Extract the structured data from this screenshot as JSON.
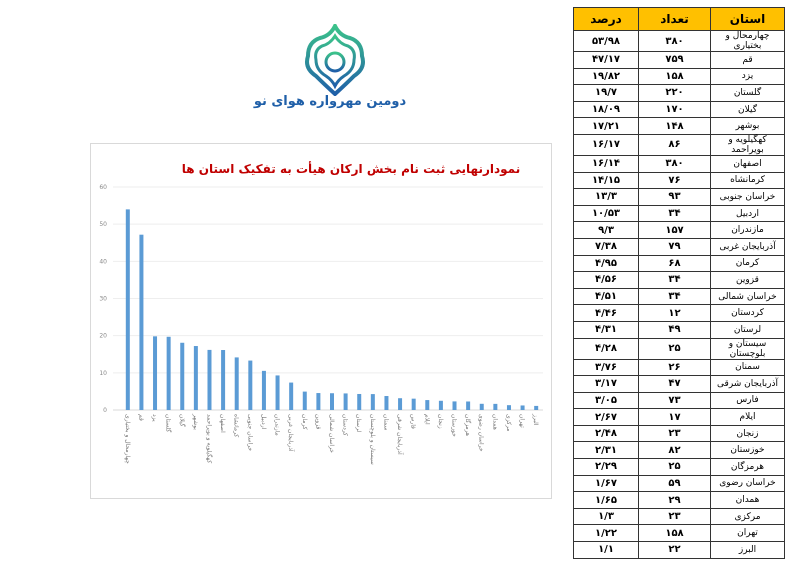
{
  "brand": {
    "text": "دومین مهرواره هوای نو",
    "colors": [
      "#1f5fa8",
      "#2fb08a"
    ]
  },
  "table": {
    "headers": {
      "province": "استان",
      "count": "تعداد",
      "percent": "درصد"
    },
    "rows": [
      {
        "province": "چهارمحال و بختیاری",
        "count": "۳۸۰",
        "percent": "۵۳/۹۸"
      },
      {
        "province": "قم",
        "count": "۷۵۹",
        "percent": "۴۷/۱۷"
      },
      {
        "province": "یزد",
        "count": "۱۵۸",
        "percent": "۱۹/۸۲"
      },
      {
        "province": "گلستان",
        "count": "۲۲۰",
        "percent": "۱۹/۷"
      },
      {
        "province": "گیلان",
        "count": "۱۷۰",
        "percent": "۱۸/۰۹"
      },
      {
        "province": "بوشهر",
        "count": "۱۴۸",
        "percent": "۱۷/۲۱"
      },
      {
        "province": "کهگیلویه و بویراحمد",
        "count": "۸۶",
        "percent": "۱۶/۱۷"
      },
      {
        "province": "اصفهان",
        "count": "۳۸۰",
        "percent": "۱۶/۱۴"
      },
      {
        "province": "کرمانشاه",
        "count": "۷۶",
        "percent": "۱۴/۱۵"
      },
      {
        "province": "خراسان جنوبی",
        "count": "۹۳",
        "percent": "۱۳/۳"
      },
      {
        "province": "اردبیل",
        "count": "۳۴",
        "percent": "۱۰/۵۳"
      },
      {
        "province": "مازندران",
        "count": "۱۵۷",
        "percent": "۹/۳"
      },
      {
        "province": "آذربایجان غربی",
        "count": "۷۹",
        "percent": "۷/۳۸"
      },
      {
        "province": "کرمان",
        "count": "۶۸",
        "percent": "۴/۹۵"
      },
      {
        "province": "قزوین",
        "count": "۳۴",
        "percent": "۴/۵۶"
      },
      {
        "province": "خراسان شمالی",
        "count": "۳۴",
        "percent": "۴/۵۱"
      },
      {
        "province": "کردستان",
        "count": "۱۲",
        "percent": "۴/۴۶"
      },
      {
        "province": "لرستان",
        "count": "۴۹",
        "percent": "۴/۳۱"
      },
      {
        "province": "سیستان و بلوچستان",
        "count": "۲۵",
        "percent": "۴/۲۸"
      },
      {
        "province": "سمنان",
        "count": "۲۶",
        "percent": "۳/۷۶"
      },
      {
        "province": "آذربایجان شرقی",
        "count": "۴۷",
        "percent": "۳/۱۷"
      },
      {
        "province": "فارس",
        "count": "۷۳",
        "percent": "۳/۰۵"
      },
      {
        "province": "ایلام",
        "count": "۱۷",
        "percent": "۲/۶۷"
      },
      {
        "province": "زنجان",
        "count": "۲۳",
        "percent": "۲/۴۸"
      },
      {
        "province": "خوزستان",
        "count": "۸۲",
        "percent": "۲/۳۱"
      },
      {
        "province": "هرمزگان",
        "count": "۲۵",
        "percent": "۲/۲۹"
      },
      {
        "province": "خراسان رضوی",
        "count": "۵۹",
        "percent": "۱/۶۷"
      },
      {
        "province": "همدان",
        "count": "۲۹",
        "percent": "۱/۶۵"
      },
      {
        "province": "مرکزی",
        "count": "۲۳",
        "percent": "۱/۳"
      },
      {
        "province": "تهران",
        "count": "۱۵۸",
        "percent": "۱/۲۲"
      },
      {
        "province": "البرز",
        "count": "۲۲",
        "percent": "۱/۱"
      }
    ]
  },
  "chart_data": {
    "type": "bar",
    "title": "نمودارنهایی ثبت نام بخش ارکان هیأت به تفکیک استان ها",
    "categories": [
      "چهارمحال و بختیاری",
      "قم",
      "یزد",
      "گلستان",
      "گیلان",
      "بوشهر",
      "کهگیلویه و بویراحمد",
      "اصفهان",
      "کرمانشاه",
      "خراسان جنوبی",
      "اردبیل",
      "مازندران",
      "آذربایجان غربی",
      "کرمان",
      "قزوین",
      "خراسان شمالی",
      "کردستان",
      "لرستان",
      "سیستان و بلوچستان",
      "سمنان",
      "آذربایجان شرقی",
      "فارس",
      "ایلام",
      "زنجان",
      "خوزستان",
      "هرمزگان",
      "خراسان رضوی",
      "همدان",
      "مرکزی",
      "تهران",
      "البرز"
    ],
    "values": [
      53.98,
      47.17,
      19.82,
      19.7,
      18.09,
      17.21,
      16.17,
      16.14,
      14.15,
      13.3,
      10.53,
      9.3,
      7.38,
      4.95,
      4.56,
      4.51,
      4.46,
      4.31,
      4.28,
      3.76,
      3.17,
      3.05,
      2.67,
      2.48,
      2.31,
      2.29,
      1.67,
      1.65,
      1.3,
      1.22,
      1.1
    ],
    "ylim": [
      0,
      60
    ],
    "yticks": [
      "0",
      "10",
      "20",
      "30",
      "40",
      "50",
      "60"
    ],
    "grid": true,
    "bar_color": "#5b9bd5",
    "title_color": "#c00000"
  }
}
